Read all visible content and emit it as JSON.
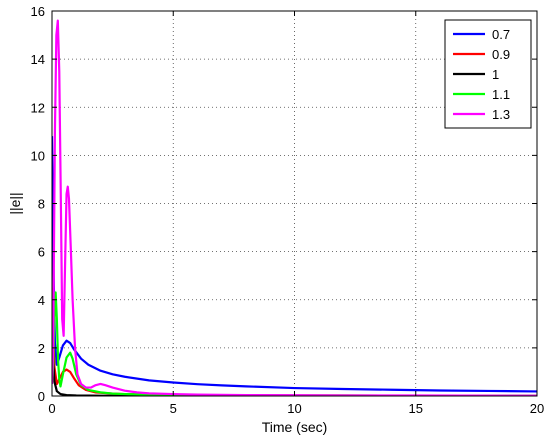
{
  "chart_data": {
    "type": "line",
    "xlabel": "Time (sec)",
    "ylabel": "||e||",
    "xlim": [
      0,
      20
    ],
    "ylim": [
      0,
      16
    ],
    "xticks": [
      "0",
      "5",
      "10",
      "15",
      "20"
    ],
    "yticks": [
      "0",
      "2",
      "4",
      "6",
      "8",
      "10",
      "12",
      "14",
      "16"
    ],
    "grid": true,
    "legend_position": "top-right",
    "series": [
      {
        "name": "0.7",
        "color": "#0000ff",
        "x": [
          0,
          0.05,
          0.12,
          0.2,
          0.3,
          0.45,
          0.6,
          0.75,
          0.9,
          1.2,
          1.5,
          2,
          2.5,
          3,
          4,
          5,
          6,
          7,
          8,
          10,
          12,
          14,
          16,
          18,
          20
        ],
        "y": [
          10.8,
          6.0,
          2.2,
          1.3,
          1.6,
          2.1,
          2.3,
          2.2,
          1.95,
          1.55,
          1.3,
          1.05,
          0.9,
          0.8,
          0.65,
          0.56,
          0.49,
          0.44,
          0.4,
          0.33,
          0.29,
          0.26,
          0.23,
          0.21,
          0.19
        ]
      },
      {
        "name": "0.9",
        "color": "#ff0000",
        "x": [
          0,
          0.05,
          0.1,
          0.2,
          0.3,
          0.45,
          0.6,
          0.75,
          0.9,
          1.1,
          1.4,
          1.8,
          2.5,
          3,
          4,
          5,
          6,
          8,
          10,
          12,
          15,
          20
        ],
        "y": [
          4.5,
          2.8,
          1.2,
          0.5,
          0.7,
          1.0,
          1.1,
          1.0,
          0.75,
          0.45,
          0.25,
          0.15,
          0.1,
          0.08,
          0.06,
          0.05,
          0.04,
          0.03,
          0.02,
          0.02,
          0.01,
          0.01
        ]
      },
      {
        "name": "1",
        "color": "#000000",
        "x": [
          0,
          0.05,
          0.1,
          0.2,
          0.35,
          0.6,
          1,
          2,
          5,
          10,
          20
        ],
        "y": [
          3.0,
          1.5,
          0.6,
          0.2,
          0.08,
          0.04,
          0.02,
          0.01,
          0,
          0,
          0
        ]
      },
      {
        "name": "1.1",
        "color": "#00ff00",
        "x": [
          0,
          0.05,
          0.1,
          0.15,
          0.2,
          0.25,
          0.3,
          0.35,
          0.45,
          0.6,
          0.75,
          0.85,
          1,
          1.2,
          1.5,
          2,
          2.5,
          3,
          4,
          5,
          6,
          8,
          10,
          12,
          15,
          20
        ],
        "y": [
          0.5,
          1.3,
          3.3,
          4.3,
          3.2,
          1.5,
          0.7,
          0.4,
          0.9,
          1.6,
          1.8,
          1.55,
          0.9,
          0.45,
          0.25,
          0.15,
          0.1,
          0.08,
          0.06,
          0.05,
          0.04,
          0.03,
          0.02,
          0.02,
          0.01,
          0.01
        ]
      },
      {
        "name": "1.3",
        "color": "#ff00ff",
        "x": [
          0,
          0.05,
          0.08,
          0.12,
          0.18,
          0.24,
          0.3,
          0.36,
          0.42,
          0.48,
          0.55,
          0.6,
          0.65,
          0.7,
          0.78,
          0.85,
          0.95,
          1.05,
          1.2,
          1.4,
          1.6,
          1.8,
          2.0,
          2.2,
          2.5,
          3.0,
          3.5,
          4,
          5,
          6,
          8,
          10,
          12,
          15,
          20
        ],
        "y": [
          0.5,
          2.0,
          6.0,
          11.0,
          15.0,
          15.6,
          13.5,
          8.5,
          3.2,
          2.5,
          6.0,
          8.4,
          8.7,
          8.2,
          6.0,
          4.0,
          2.0,
          0.9,
          0.5,
          0.35,
          0.35,
          0.45,
          0.5,
          0.45,
          0.35,
          0.22,
          0.15,
          0.11,
          0.08,
          0.06,
          0.04,
          0.03,
          0.02,
          0.02,
          0.01
        ]
      }
    ]
  }
}
